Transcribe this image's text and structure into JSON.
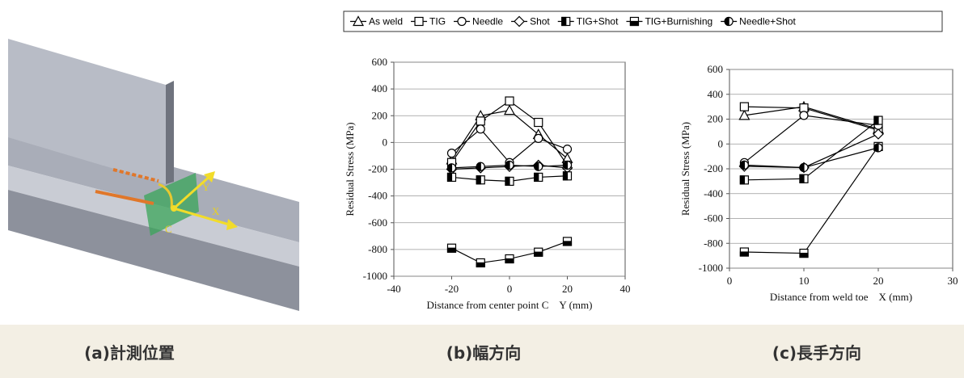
{
  "illustration": {
    "labels": [
      "Y",
      "X",
      "C"
    ]
  },
  "captions": [
    "(a)計測位置",
    "(b)幅方向",
    "(c)長手方向"
  ],
  "chart_data": [
    {
      "type": "line",
      "y_label": "Residual Stress  (MPa)",
      "x_label": "Distance from center point C　Y (mm)",
      "x": [
        -20,
        -10,
        0,
        10,
        20
      ],
      "xlim": [
        -40,
        40
      ],
      "xticks": [
        -40,
        -20,
        0,
        20,
        40
      ],
      "ylim": [
        -1000,
        600
      ],
      "yticks": [
        -1000,
        -800,
        -600,
        -400,
        -200,
        0,
        200,
        400,
        600
      ],
      "grid": true,
      "series": [
        {
          "name": "As weld",
          "marker": "triangle",
          "color": "#000000",
          "values": [
            -130,
            200,
            240,
            60,
            -120
          ]
        },
        {
          "name": "TIG",
          "marker": "square",
          "color": "#000000",
          "values": [
            -150,
            160,
            310,
            150,
            -170
          ]
        },
        {
          "name": "Needle",
          "marker": "circle",
          "color": "#000000",
          "values": [
            -80,
            100,
            -150,
            30,
            -50
          ]
        },
        {
          "name": "Shot",
          "marker": "diamond",
          "color": "#000000",
          "values": [
            -200,
            -190,
            -180,
            -170,
            -190
          ]
        },
        {
          "name": "TIG+Shot",
          "marker": "half-square-left",
          "color": "#000000",
          "values": [
            -260,
            -280,
            -290,
            -260,
            -250
          ]
        },
        {
          "name": "TIG+Burnishing",
          "marker": "half-square-bottom",
          "color": "#000000",
          "values": [
            -790,
            -900,
            -870,
            -820,
            -740
          ]
        },
        {
          "name": "Needle+Shot",
          "marker": "half-circle",
          "color": "#000000",
          "values": [
            -190,
            -180,
            -170,
            -180,
            -170
          ]
        }
      ]
    },
    {
      "type": "line",
      "y_label": "Residual Stress  (MPa)",
      "x_label": "Distance from weld toe　X (mm)",
      "x": [
        2,
        10,
        20
      ],
      "xlim": [
        0,
        30
      ],
      "xticks": [
        0,
        10,
        20,
        30
      ],
      "ylim": [
        -1000,
        600
      ],
      "yticks": [
        -1000,
        -800,
        -600,
        -400,
        -200,
        0,
        200,
        400,
        600
      ],
      "grid": true,
      "series": [
        {
          "marker": "triangle",
          "color": "#000000",
          "values": [
            230,
            300,
            120
          ]
        },
        {
          "marker": "square",
          "color": "#000000",
          "values": [
            300,
            290,
            110
          ]
        },
        {
          "marker": "circle",
          "color": "#000000",
          "values": [
            -150,
            230,
            150
          ]
        },
        {
          "marker": "diamond",
          "color": "#000000",
          "values": [
            -180,
            -190,
            80
          ]
        },
        {
          "marker": "half-square-left",
          "color": "#000000",
          "values": [
            -290,
            -280,
            190
          ]
        },
        {
          "marker": "half-square-bottom",
          "color": "#000000",
          "values": [
            -870,
            -880,
            -20
          ]
        },
        {
          "marker": "half-circle",
          "color": "#000000",
          "values": [
            -170,
            -190,
            -30
          ]
        }
      ]
    }
  ]
}
